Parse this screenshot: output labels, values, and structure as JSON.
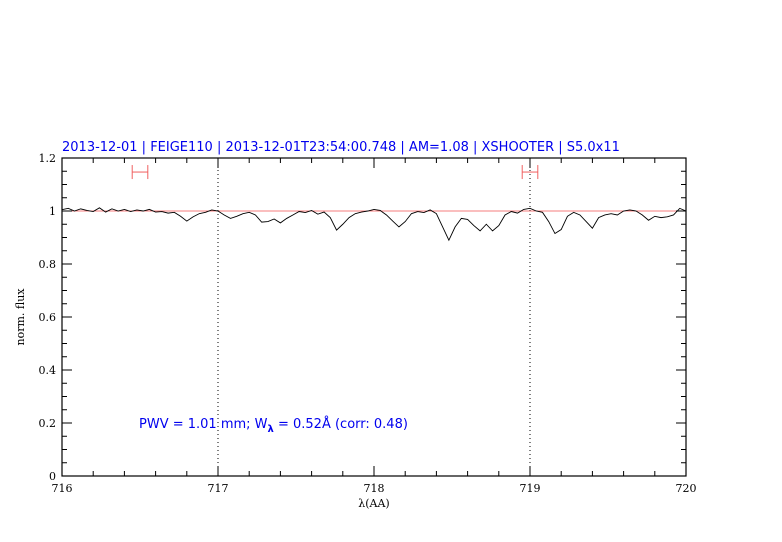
{
  "chart_data": {
    "type": "line",
    "title": "2013-12-01 | FEIGE110 | 2013-12-01T23:54:00.748 | AM=1.08 | XSHOOTER | S5.0x11",
    "xlabel": "λ(AA)",
    "ylabel": "norm. flux",
    "xlim": [
      716,
      720
    ],
    "ylim": [
      0,
      1.2
    ],
    "x_ticks": [
      "716",
      "717",
      "718",
      "719",
      "720"
    ],
    "y_ticks": [
      "0",
      "0.2",
      "0.4",
      "0.6",
      "0.8",
      "1",
      "1.2"
    ],
    "grid": false,
    "reference_line": 1.0,
    "vertical_markers": [
      717,
      719
    ],
    "error_bars": [
      {
        "x": [
          716.45,
          716.55
        ],
        "y": 1.147
      },
      {
        "x": [
          718.95,
          719.05
        ],
        "y": 1.147
      }
    ],
    "annotation": {
      "pwv": "PWV  =  1.01  mm;  W",
      "sub": "λ",
      "rest": "  =  0.52Å  (corr:  0.48)"
    },
    "colors": {
      "spectrum": "#000000",
      "reference": "#f05050",
      "error_bars": "#f06060",
      "text": "#0000ee"
    },
    "series": [
      {
        "x": [
          716.0,
          716.04,
          716.08,
          716.12,
          716.16,
          716.2,
          716.24,
          716.28,
          716.32,
          716.36,
          716.4,
          716.44,
          716.48,
          716.52,
          716.56,
          716.6,
          716.64,
          716.68,
          716.72,
          716.76,
          716.8,
          716.84,
          716.88,
          716.92,
          716.96,
          717.0,
          717.04,
          717.08,
          717.12,
          717.16,
          717.2,
          717.24,
          717.28,
          717.32,
          717.36,
          717.4,
          717.44,
          717.48,
          717.52,
          717.56,
          717.6,
          717.64,
          717.68,
          717.72,
          717.76,
          717.8,
          717.84,
          717.88,
          717.92,
          717.96,
          718.0,
          718.04,
          718.08,
          718.12,
          718.16,
          718.2,
          718.24,
          718.28,
          718.32,
          718.36,
          718.4,
          718.44,
          718.48,
          718.52,
          718.56,
          718.6,
          718.64,
          718.68,
          718.72,
          718.76,
          718.8,
          718.84,
          718.88,
          718.92,
          718.96,
          719.0,
          719.04,
          719.08,
          719.12,
          719.16,
          719.2,
          719.24,
          719.28,
          719.32,
          719.36,
          719.4,
          719.44,
          719.48,
          719.52,
          719.56,
          719.6,
          719.64,
          719.68,
          719.72,
          719.76,
          719.8,
          719.84,
          719.88,
          719.92,
          719.96,
          720.0
        ],
        "y": [
          1.005,
          1.01,
          1.0,
          1.008,
          1.002,
          0.998,
          1.012,
          0.996,
          1.008,
          1.0,
          1.006,
          0.998,
          1.004,
          1.0,
          1.006,
          0.996,
          0.998,
          0.992,
          0.995,
          0.98,
          0.962,
          0.978,
          0.99,
          0.995,
          1.004,
          1.0,
          0.985,
          0.972,
          0.98,
          0.99,
          0.995,
          0.985,
          0.958,
          0.96,
          0.97,
          0.955,
          0.972,
          0.985,
          0.998,
          0.994,
          1.002,
          0.988,
          0.996,
          0.975,
          0.928,
          0.95,
          0.975,
          0.99,
          0.996,
          1.0,
          1.006,
          1.002,
          0.985,
          0.962,
          0.94,
          0.96,
          0.99,
          0.998,
          0.994,
          1.004,
          0.99,
          0.94,
          0.89,
          0.94,
          0.972,
          0.968,
          0.945,
          0.925,
          0.95,
          0.925,
          0.945,
          0.985,
          0.998,
          0.992,
          1.006,
          1.01,
          1.0,
          0.995,
          0.96,
          0.915,
          0.93,
          0.98,
          0.995,
          0.985,
          0.96,
          0.935,
          0.975,
          0.985,
          0.99,
          0.985,
          1.0,
          1.004,
          1.0,
          0.985,
          0.965,
          0.98,
          0.975,
          0.978,
          0.985,
          1.01,
          1.0
        ]
      }
    ]
  }
}
